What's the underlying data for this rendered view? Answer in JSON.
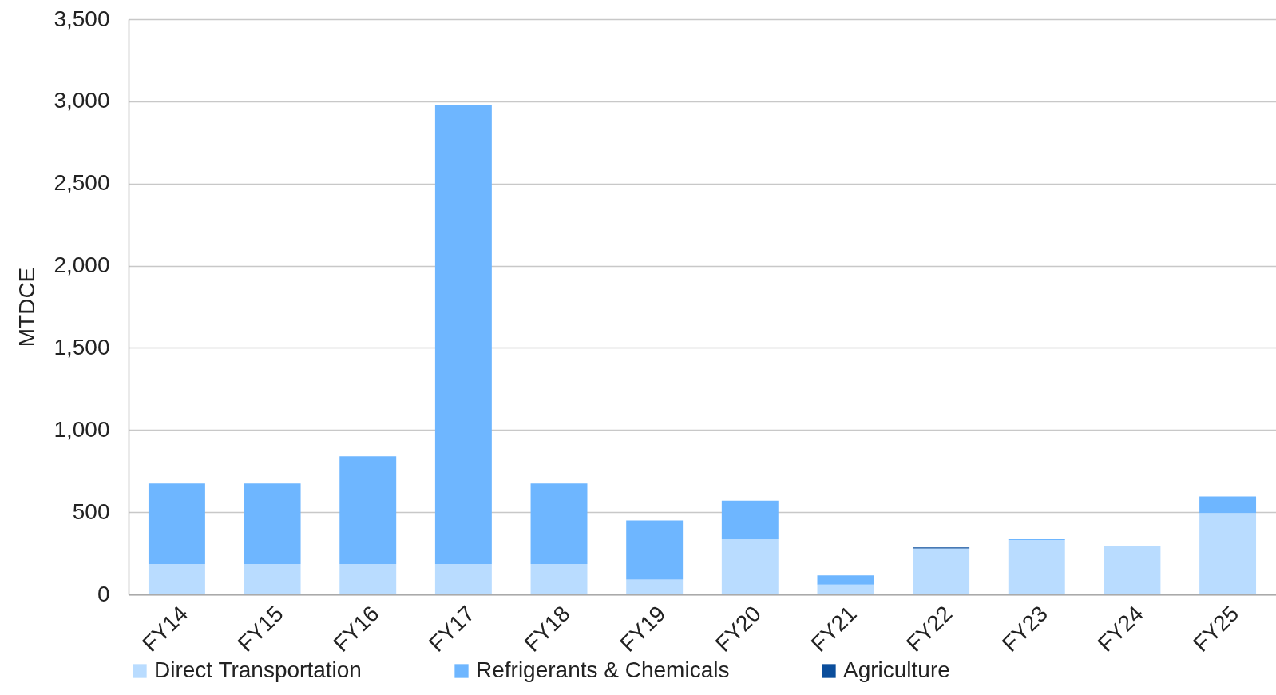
{
  "chart_data": {
    "type": "bar",
    "stacked": true,
    "ylabel": "MTDCE",
    "categories": [
      "FY14",
      "FY15",
      "FY16",
      "FY17",
      "FY18",
      "FY19",
      "FY20",
      "FY21",
      "FY22",
      "FY23",
      "FY24",
      "FY25"
    ],
    "series": [
      {
        "name": "Direct Transportation",
        "color": "#b9dcff",
        "values": [
          185,
          185,
          185,
          185,
          185,
          90,
          335,
          60,
          280,
          330,
          295,
          495
        ]
      },
      {
        "name": "Refrigerants & Chemicals",
        "color": "#6eb6ff",
        "values": [
          490,
          490,
          655,
          2795,
          490,
          360,
          235,
          55,
          null,
          5,
          null,
          100
        ]
      },
      {
        "name": "Agriculture",
        "color": "#0b4e9c",
        "values": [
          0,
          0,
          0,
          0,
          0,
          0,
          0,
          0,
          5,
          0,
          0,
          0
        ]
      }
    ],
    "ylim": [
      0,
      3500
    ],
    "yticks": [
      0,
      500,
      {
        "value": 1000,
        "label": "1,000"
      },
      {
        "value": 1500,
        "label": "1,500"
      },
      {
        "value": 2000,
        "label": "2,000"
      },
      {
        "value": 2500,
        "label": "2,500"
      },
      {
        "value": 3000,
        "label": "3,000"
      },
      {
        "value": 3500,
        "label": "3,500"
      }
    ],
    "grid": "y",
    "legend": "bottom"
  }
}
